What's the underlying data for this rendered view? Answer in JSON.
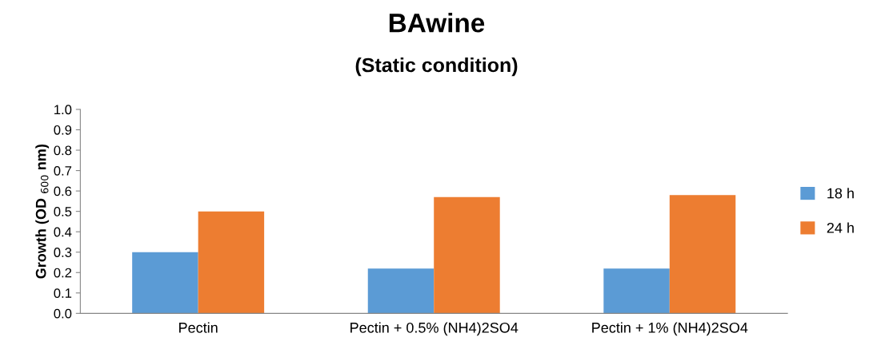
{
  "chart_data": {
    "type": "bar",
    "title": "BAwine",
    "subtitle": "(Static condition)",
    "ylabel": "Growth (OD $_{600}$ nm)",
    "categories": [
      "Pectin",
      "Pectin + 0.5% (NH4)2SO4",
      "Pectin + 1% (NH4)2SO4"
    ],
    "series": [
      {
        "name": "18 h",
        "color": "#5b9bd5",
        "values": [
          0.3,
          0.22,
          0.22
        ]
      },
      {
        "name": "24 h",
        "color": "#ed7d31",
        "values": [
          0.5,
          0.57,
          0.58
        ]
      }
    ],
    "ylim": [
      0,
      1.0
    ],
    "yticks": [
      {
        "value": 0,
        "label": "0.0"
      },
      0.1,
      0.2,
      0.3,
      0.4,
      0.5,
      0.6,
      0.7,
      0.8,
      0.9,
      {
        "value": 1.0,
        "label": "1.0"
      }
    ],
    "grid": false,
    "legend": "right"
  }
}
